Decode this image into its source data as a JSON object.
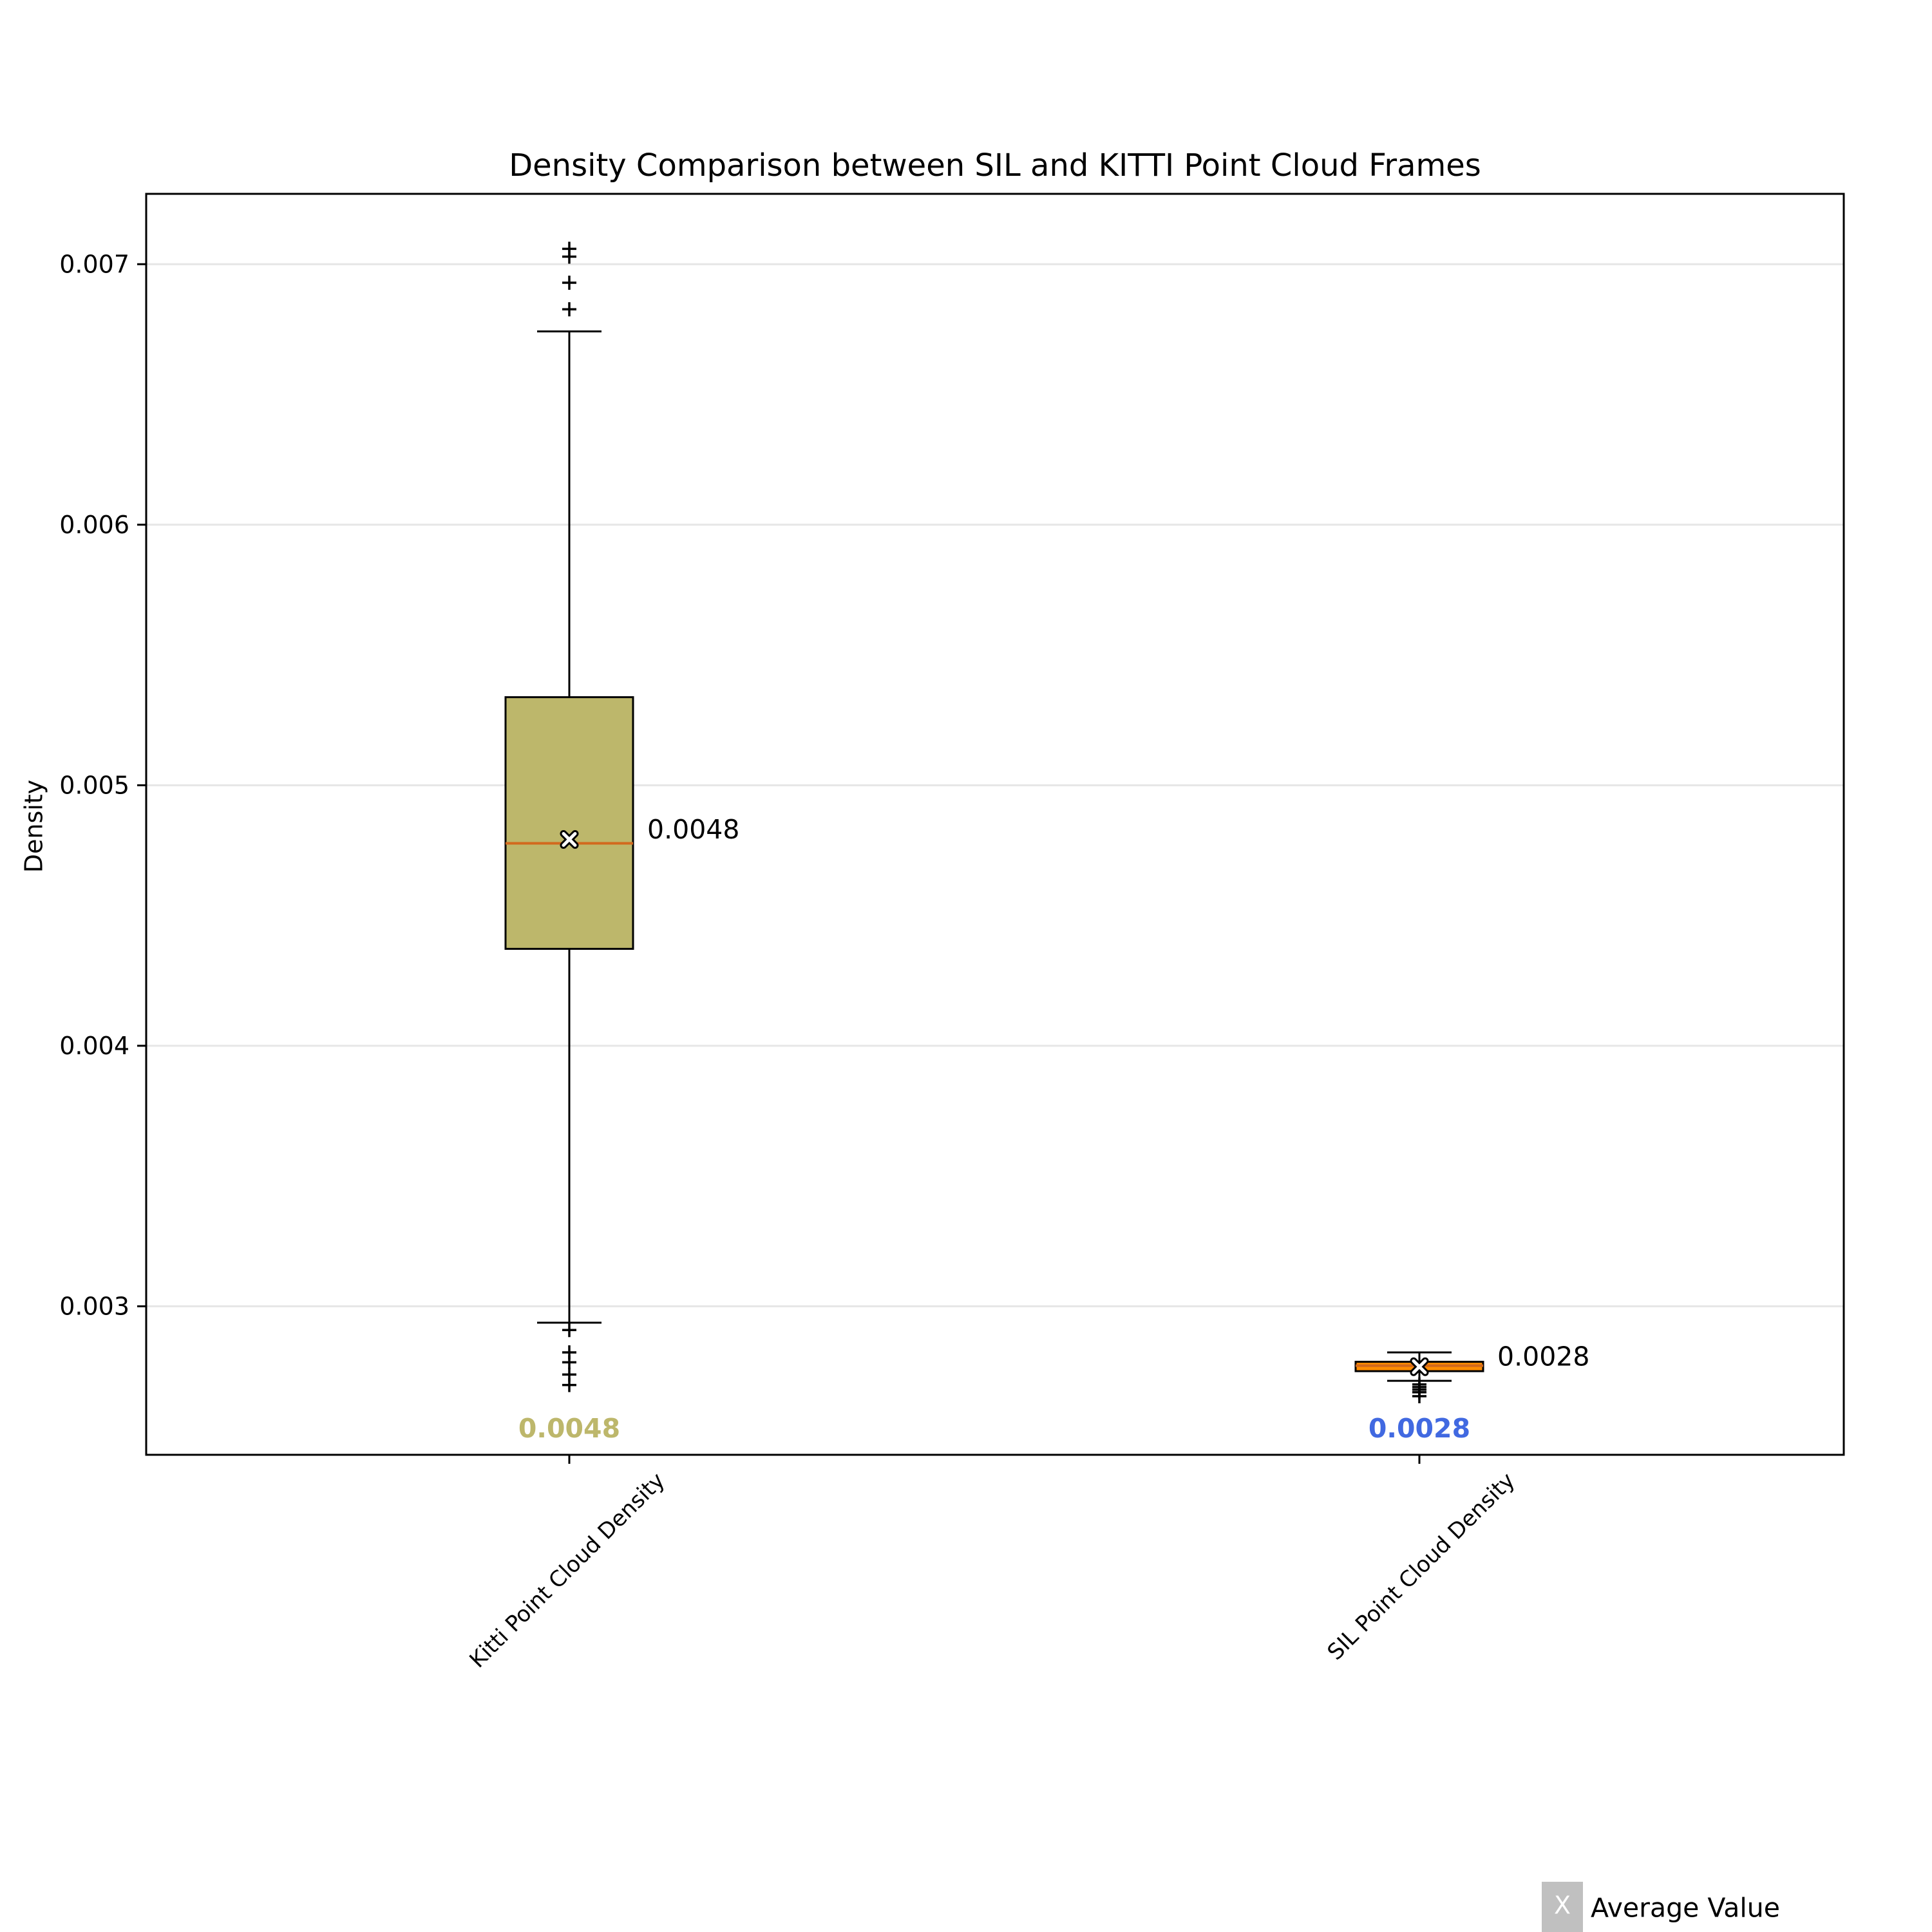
{
  "chart_data": {
    "type": "box",
    "title": "Density Comparison between SIL and KITTI Point Cloud Frames",
    "xlabel": "",
    "ylabel": "Density",
    "ylim": [
      0.00243,
      0.00727
    ],
    "yticks": [
      "0.003",
      "0.004",
      "0.005",
      "0.006",
      "0.007"
    ],
    "ytick_values": [
      0.003,
      0.004,
      0.005,
      0.006,
      0.007
    ],
    "grid": "y",
    "colors": {
      "kitti_box": "#bdb76b",
      "sil_box": "#ff8c00",
      "median_line": "#d2691e",
      "kitti_label": "#bdb76b",
      "sil_label": "#4169e1",
      "grid": "#e6e6e6",
      "legend_box": "#c0c0c0"
    },
    "categories": [
      "Kitti Point Cloud Density",
      "SIL Point Cloud Density"
    ],
    "boxes": [
      {
        "q1": 0.004372,
        "median": 0.004777,
        "q3": 0.005338,
        "whisker_low": 0.002937,
        "whisker_high": 0.006742,
        "mean": 0.004792,
        "outliers": [
          0.007059,
          0.007029,
          0.006929,
          0.006827,
          0.002909,
          0.002823,
          0.002785,
          0.002738,
          0.002698
        ],
        "side_label": "0.0048",
        "bottom_label": "0.0048"
      },
      {
        "q1": 0.002751,
        "median": 0.002772,
        "q3": 0.002787,
        "whisker_low": 0.002714,
        "whisker_high": 0.002823,
        "mean": 0.002768,
        "outliers": [
          0.0027,
          0.00269,
          0.00268,
          0.00267,
          0.002655
        ],
        "side_label": "0.0028",
        "bottom_label": "0.0028"
      }
    ],
    "legend": {
      "label": "Average Value",
      "marker": "X",
      "position": "bottom-right"
    }
  }
}
